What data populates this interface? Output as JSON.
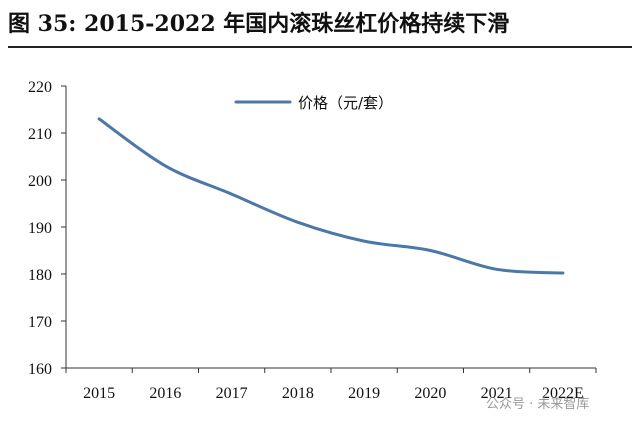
{
  "title": "图 35:  2015-2022 年国内滚珠丝杠价格持续下滑",
  "watermark": "公众号 · 未来智库",
  "chart_data": {
    "type": "line",
    "categories": [
      "2015",
      "2016",
      "2017",
      "2018",
      "2019",
      "2020",
      "2021",
      "2022E"
    ],
    "series": [
      {
        "name": "价格（元/套）",
        "values": [
          213,
          203,
          197,
          191,
          187,
          185,
          181,
          180.2
        ],
        "color": "#4a78a8"
      }
    ],
    "ylim": [
      160,
      220
    ],
    "yticks": [
      160,
      170,
      180,
      190,
      200,
      210,
      220
    ],
    "legend_position": "top-center",
    "grid": false
  }
}
